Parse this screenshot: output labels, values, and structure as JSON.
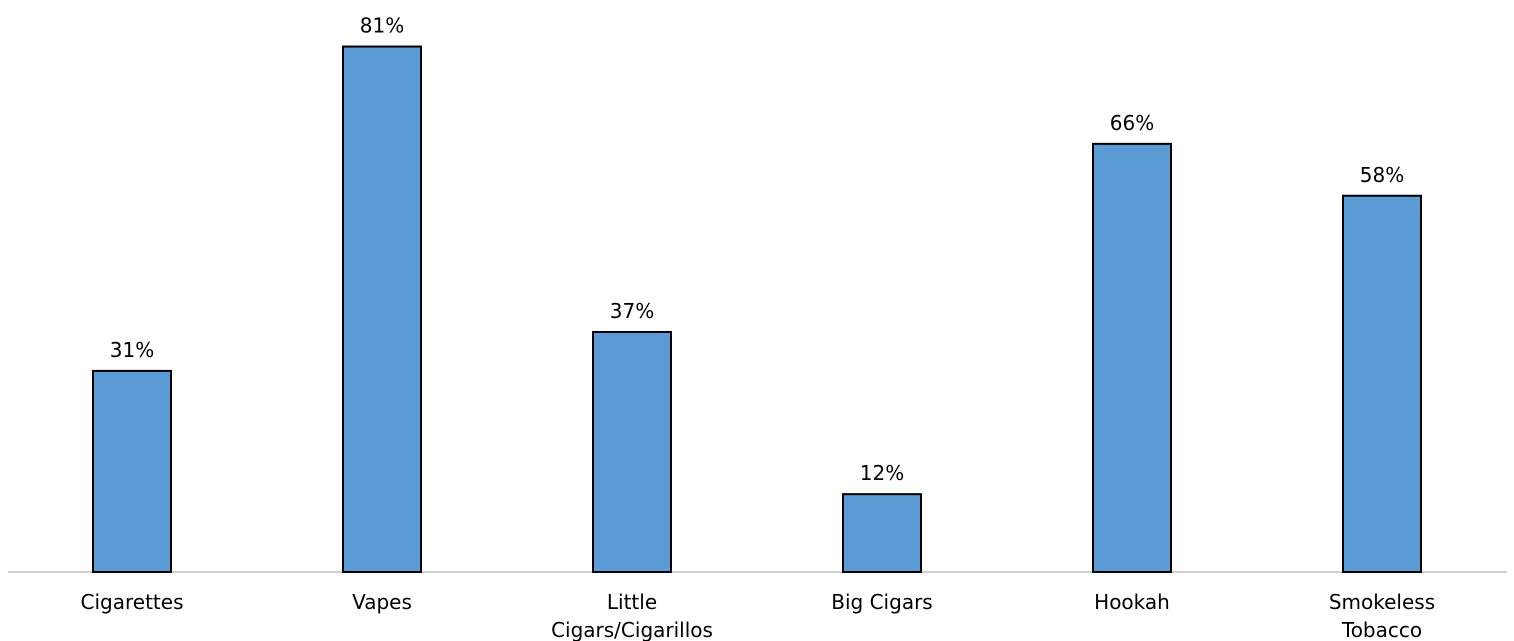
{
  "chart_data": {
    "type": "bar",
    "categories": [
      [
        "Cigarettes"
      ],
      [
        "Vapes"
      ],
      [
        "Little",
        "Cigars/Cigarillos"
      ],
      [
        "Big Cigars"
      ],
      [
        "Hookah"
      ],
      [
        "Smokeless",
        "Tobacco"
      ]
    ],
    "values": [
      31,
      81,
      37,
      12,
      66,
      58
    ],
    "data_labels": [
      "31%",
      "81%",
      "37%",
      "12%",
      "66%",
      "58%"
    ],
    "title": "",
    "xlabel": "",
    "ylabel": "",
    "ylim": [
      0,
      100
    ],
    "grid": false,
    "legend": "none",
    "bar_color": "#5B9BD5",
    "bar_edge_color": "#000000",
    "axis_color": "#BFBFBF"
  }
}
